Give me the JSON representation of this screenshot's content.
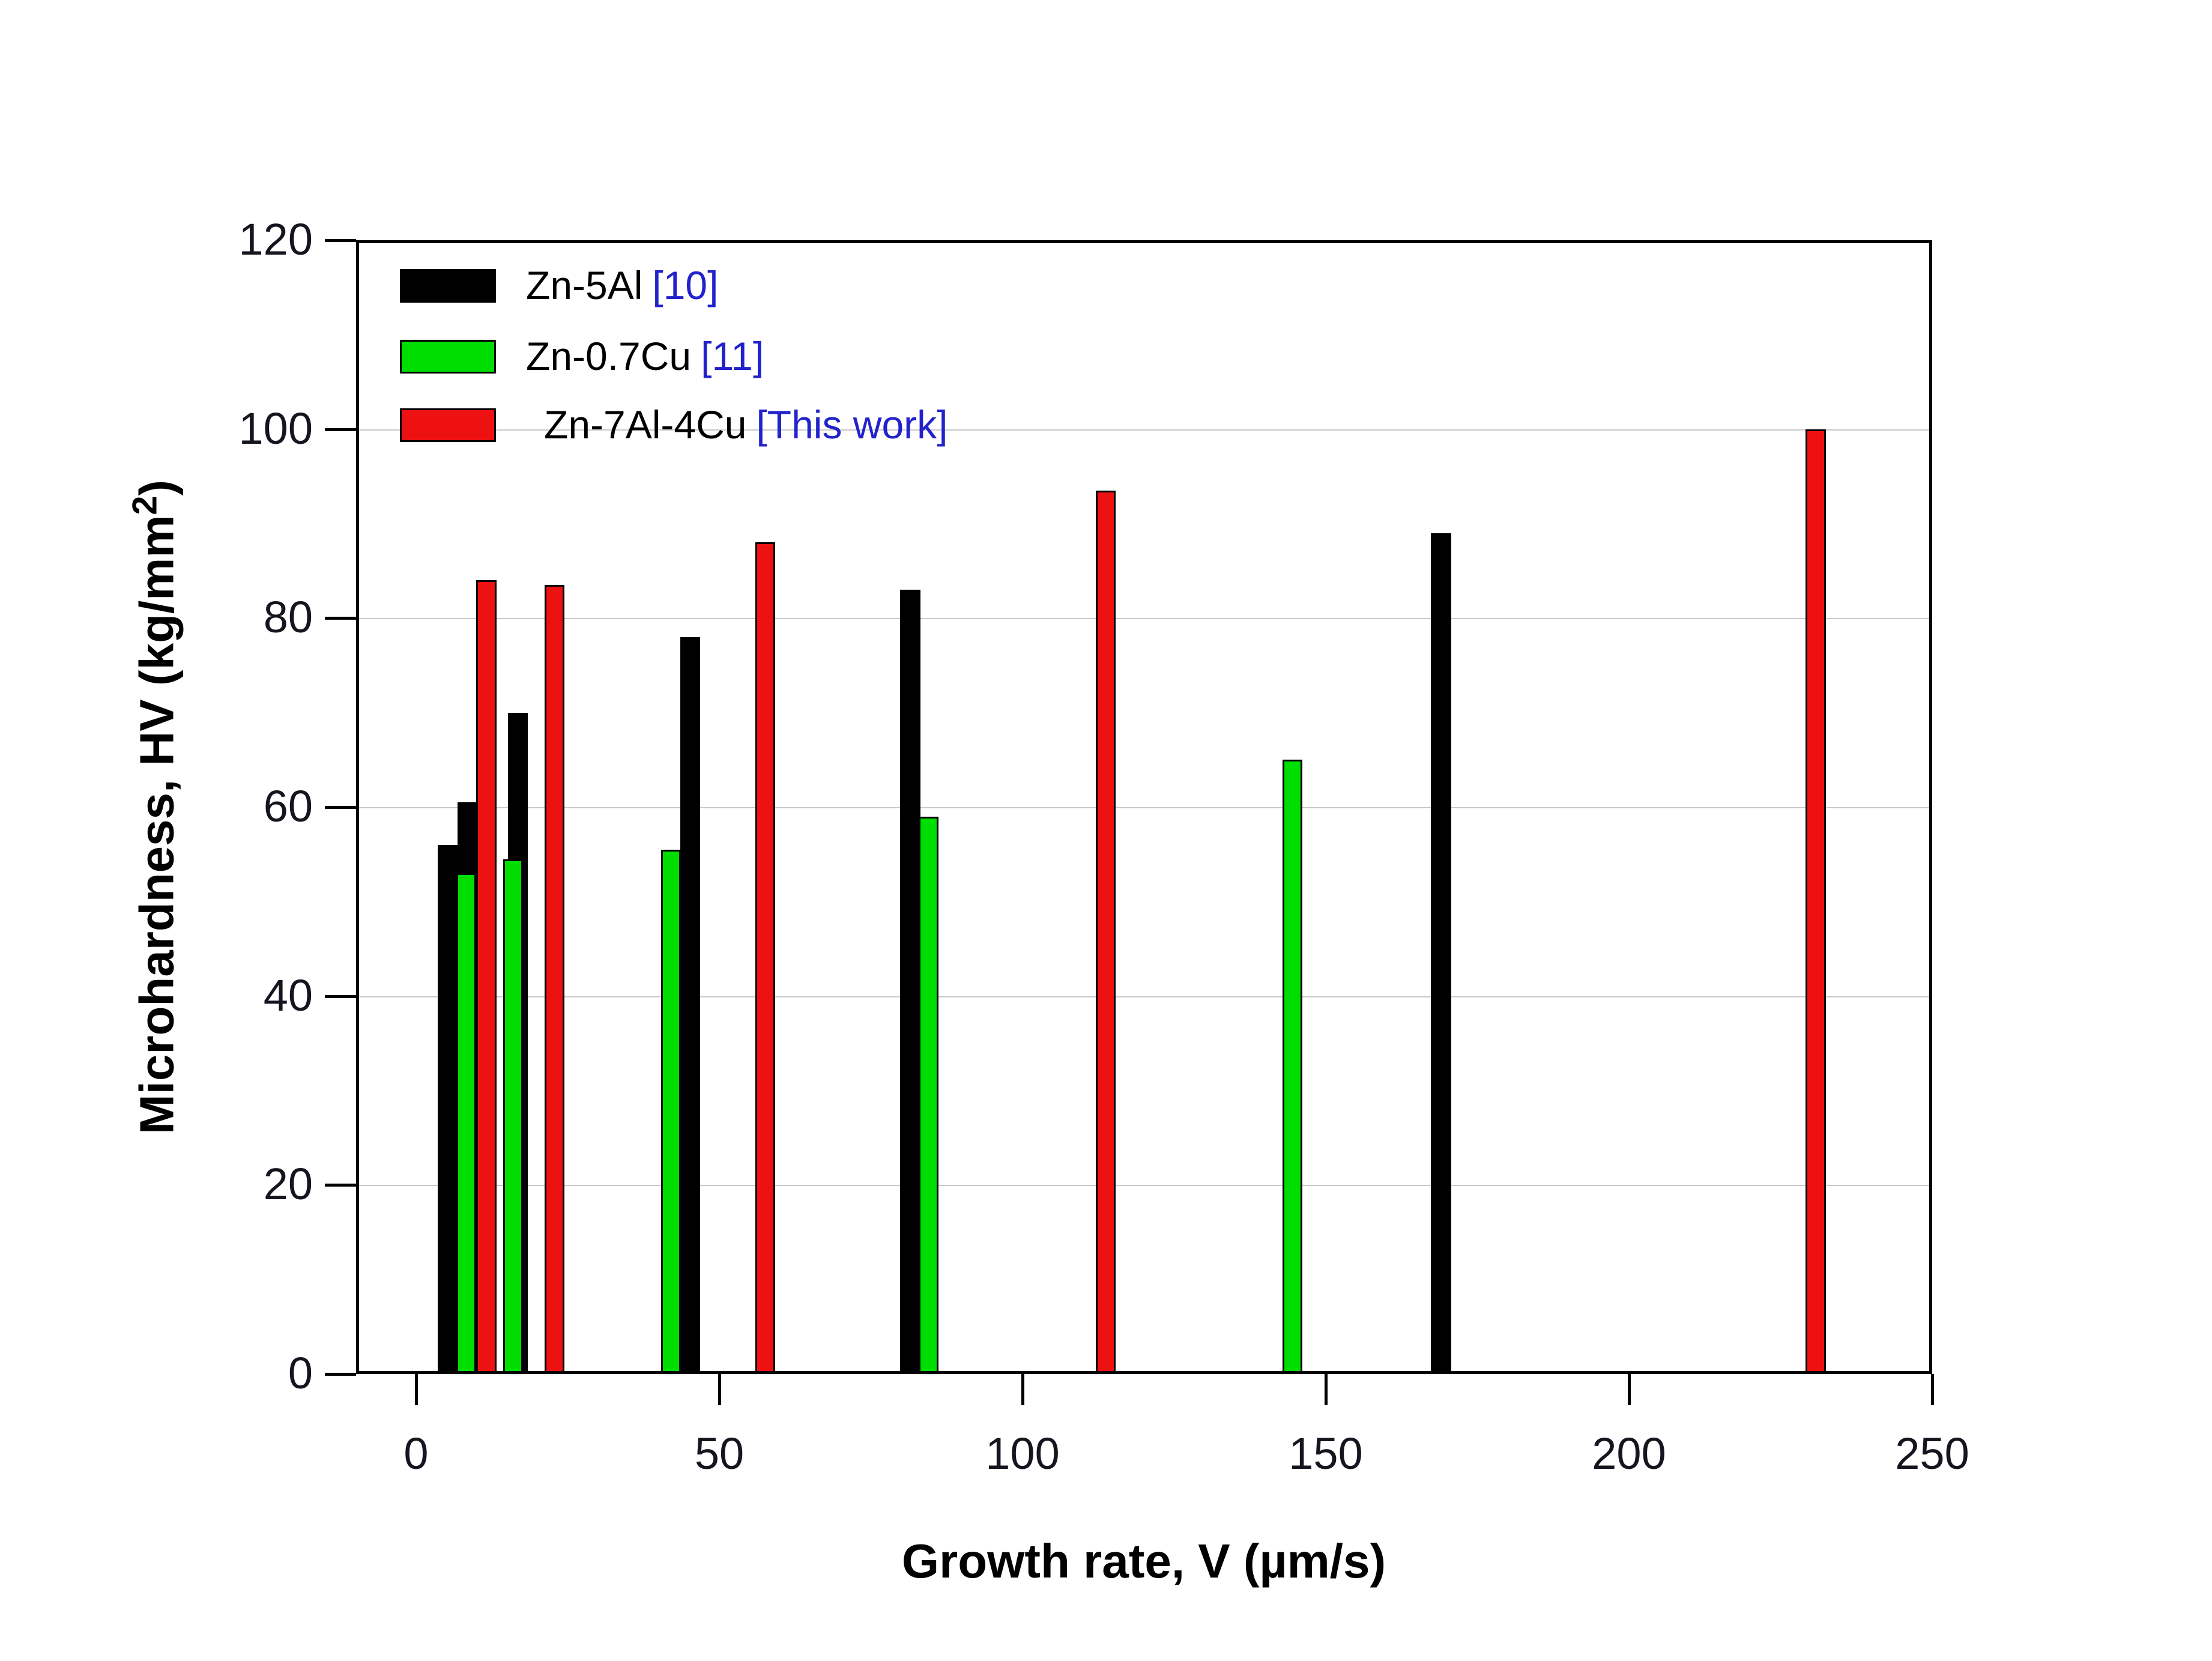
{
  "figure": {
    "background": "#ffffff",
    "title": ""
  },
  "colors": {
    "series_black": "#000000",
    "series_green": "#00dd00",
    "series_red": "#ee1111",
    "reference_text_blue": "#2222cc",
    "axis_line": "#000000",
    "gridline": "#c9c9c9",
    "tick_label": "#15151f"
  },
  "labels": {
    "y_title_main": "Microhardness, HV (kg/mm",
    "y_title_sup": "2",
    "y_title_close": ")",
    "x_title": "Growth rate, V (µm/s)"
  },
  "chart_data": {
    "type": "bar",
    "title": "",
    "xlabel": "Growth rate, V (µm/s)",
    "ylabel": "Microhardness, HV (kg/mm²)",
    "xlim": [
      -10,
      260
    ],
    "ylim": [
      0,
      120
    ],
    "x_ticks": [
      0,
      50,
      100,
      150,
      200,
      250
    ],
    "y_ticks": [
      0,
      20,
      40,
      60,
      80,
      100,
      120
    ],
    "grid": "horizontal gridlines at y-tick intervals (light gray), none vertical",
    "legend_position": "top-left inside plot",
    "bar_width_x_units": 3.3,
    "series": [
      {
        "name": "Zn-5Al",
        "ref": "[10]",
        "color": "#000000",
        "outlined": false,
        "points": [
          {
            "x": 5.2,
            "y": 56
          },
          {
            "x": 8.5,
            "y": 60.5
          },
          {
            "x": 16.8,
            "y": 70
          },
          {
            "x": 45.2,
            "y": 78
          },
          {
            "x": 81.5,
            "y": 83
          },
          {
            "x": 169,
            "y": 89
          }
        ]
      },
      {
        "name": "Zn-0.7Cu",
        "ref": "[11]",
        "color": "#00dd00",
        "outlined": true,
        "points": [
          {
            "x": 8.3,
            "y": 53
          },
          {
            "x": 16,
            "y": 54.5
          },
          {
            "x": 42,
            "y": 55.5
          },
          {
            "x": 84.5,
            "y": 59
          },
          {
            "x": 144.5,
            "y": 65
          }
        ]
      },
      {
        "name": "Zn-7Al-4Cu",
        "ref": "[This work]",
        "color": "#ee1111",
        "outlined": true,
        "points": [
          {
            "x": 11.6,
            "y": 84
          },
          {
            "x": 22.8,
            "y": 83.5
          },
          {
            "x": 57.6,
            "y": 88
          },
          {
            "x": 113.7,
            "y": 93.5
          },
          {
            "x": 230.8,
            "y": 100
          }
        ]
      }
    ]
  }
}
